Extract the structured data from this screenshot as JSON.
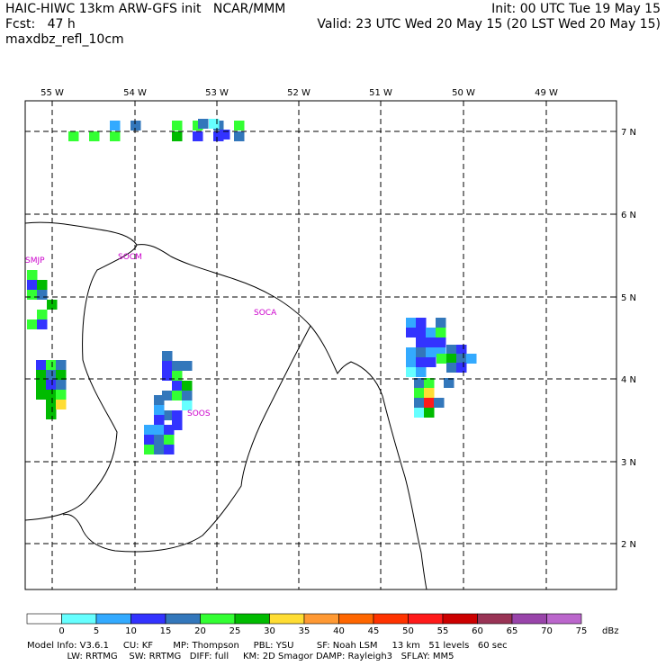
{
  "header": {
    "line1_left": "HAIC-HIWC 13km ARW-GFS init   NCAR/MMM",
    "line1_right": "Init: 00 UTC Tue 19 May 15",
    "line2_left": "Fcst:   47 h",
    "line2_right": "Valid: 23 UTC Wed 20 May 15 (20 LST Wed 20 May 15)",
    "line3_left": "maxdbz_refl_10cm"
  },
  "map": {
    "lon_labels": [
      "55 W",
      "54 W",
      "53 W",
      "52 W",
      "51 W",
      "50 W",
      "49 W"
    ],
    "lat_labels": [
      "7 N",
      "6 N",
      "5 N",
      "4 N",
      "3 N",
      "2 N"
    ],
    "place_labels": [
      {
        "name": "SMJP"
      },
      {
        "name": "SOCM"
      },
      {
        "name": "SOCA"
      },
      {
        "name": "SOOS"
      }
    ],
    "reflectivity_cells_dbz": [
      [
        0,
        4,
        10
      ],
      [
        0,
        5,
        20
      ],
      [
        0,
        7,
        25
      ],
      [
        0,
        8,
        25
      ],
      [
        0,
        9,
        20
      ],
      [
        0,
        10,
        25
      ],
      [
        1,
        2,
        25
      ],
      [
        1,
        3,
        25
      ],
      [
        1,
        4,
        25
      ],
      [
        1,
        7,
        30
      ],
      [
        1,
        8,
        15
      ],
      [
        1,
        9,
        15
      ],
      [
        1,
        10,
        20
      ],
      [
        0,
        12,
        20
      ],
      [
        0,
        13,
        5
      ],
      [
        1,
        14,
        15
      ],
      [
        3,
        12,
        25
      ],
      [
        4,
        12,
        15
      ],
      [
        4,
        13,
        30
      ],
      [
        5,
        12,
        25
      ],
      [
        5,
        13,
        20
      ],
      [
        6,
        14,
        30
      ],
      [
        7,
        13,
        25
      ],
      [
        8,
        12,
        25
      ],
      [
        8,
        13,
        15
      ],
      [
        3,
        15,
        15
      ],
      [
        3,
        16,
        25
      ],
      [
        3,
        17,
        20
      ],
      [
        4,
        15,
        30
      ],
      [
        4,
        16,
        20
      ],
      [
        4,
        17,
        30
      ],
      [
        5,
        15,
        30
      ],
      [
        5,
        16,
        15
      ],
      [
        5,
        17,
        20
      ],
      [
        6,
        15,
        30
      ],
      [
        6,
        16,
        30
      ],
      [
        6,
        17,
        25
      ],
      [
        7,
        16,
        30
      ],
      [
        7,
        17,
        35
      ],
      [
        8,
        16,
        30
      ],
      [
        2,
        19,
        20
      ],
      [
        3,
        19,
        15
      ],
      [
        3,
        20,
        20
      ],
      [
        3,
        21,
        20
      ],
      [
        4,
        19,
        15
      ],
      [
        4,
        20,
        25
      ],
      [
        5,
        20,
        15
      ],
      [
        5,
        21,
        30
      ],
      [
        6,
        19,
        20
      ],
      [
        6,
        20,
        25
      ],
      [
        6,
        21,
        20
      ],
      [
        7,
        21,
        5
      ],
      [
        8,
        19,
        20
      ],
      [
        8,
        20,
        15
      ],
      [
        9,
        20,
        15
      ],
      [
        3,
        23,
        20
      ],
      [
        4,
        23,
        10
      ],
      [
        5,
        23,
        15
      ],
      [
        6,
        22,
        10
      ],
      [
        6,
        23,
        10
      ],
      [
        6,
        24,
        15
      ],
      [
        7,
        22,
        15
      ],
      [
        7,
        23,
        20
      ],
      [
        7,
        24,
        25
      ],
      [
        8,
        22,
        25
      ],
      [
        8,
        23,
        20
      ],
      [
        8,
        24,
        15
      ],
      [
        4,
        28,
        10
      ],
      [
        4,
        29,
        15
      ],
      [
        5,
        28,
        15
      ],
      [
        5,
        29,
        15
      ],
      [
        6,
        29,
        15
      ],
      [
        7,
        28,
        10
      ],
      [
        7,
        29,
        20
      ],
      [
        8,
        28,
        10
      ],
      [
        8,
        29,
        15
      ],
      [
        9,
        28,
        5
      ],
      [
        9,
        29,
        10
      ],
      [
        4,
        31,
        20
      ],
      [
        5,
        30,
        10
      ],
      [
        5,
        31,
        25
      ],
      [
        6,
        30,
        15
      ],
      [
        6,
        31,
        15
      ],
      [
        7,
        30,
        10
      ],
      [
        7,
        31,
        10
      ],
      [
        8,
        30,
        15
      ],
      [
        10,
        28,
        20
      ],
      [
        10,
        29,
        15
      ],
      [
        11,
        27,
        25
      ],
      [
        11,
        28,
        30
      ],
      [
        11,
        29,
        20
      ],
      [
        11,
        30,
        10
      ],
      [
        12,
        28,
        20
      ],
      [
        12,
        29,
        15
      ],
      [
        14,
        27,
        20
      ],
      [
        14,
        28,
        25
      ],
      [
        14,
        30,
        20
      ],
      [
        15,
        27,
        25
      ],
      [
        15,
        28,
        35
      ],
      [
        16,
        27,
        20
      ],
      [
        16,
        28,
        55
      ],
      [
        16,
        29,
        20
      ],
      [
        17,
        27,
        5
      ],
      [
        17,
        28,
        30
      ]
    ],
    "legend": {
      "labels": [
        "0",
        "5",
        "10",
        "15",
        "20",
        "25",
        "30",
        "35",
        "40",
        "45",
        "50",
        "55",
        "60",
        "65",
        "70",
        "75"
      ],
      "unit": "dBz",
      "colors": [
        "#ffffff",
        "#66ffff",
        "#33aaff",
        "#3333ff",
        "#3377bb",
        "#33ff33",
        "#00bb00",
        "#ffdd33",
        "#ff9933",
        "#ff6600",
        "#ff3300",
        "#ff1a1a",
        "#cc0000",
        "#993355",
        "#9944aa",
        "#bb66cc"
      ]
    }
  },
  "footer": {
    "line1": "Model Info: V3.6.1     CU: KF       MP: Thompson     PBL: YSU        SF: Noah LSM     13 km   51 levels   60 sec",
    "line2": "              LW: RRTMG    SW: RRTMG   DIFF: full     KM: 2D Smagor DAMP: Rayleigh3   SFLAY: MM5"
  }
}
